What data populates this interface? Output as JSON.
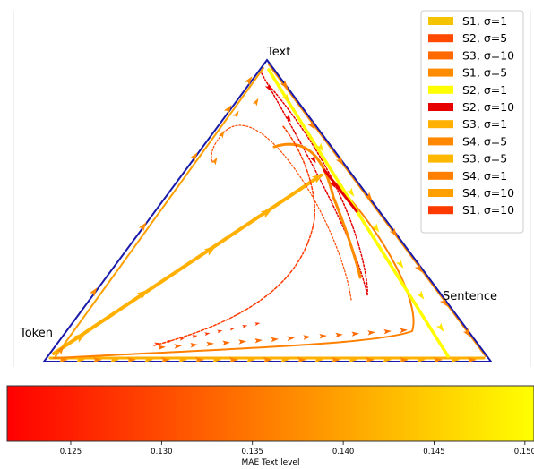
{
  "chart_data": {
    "type": "line",
    "corners": {
      "top": "Text",
      "right": "Sentence",
      "left": "Token"
    },
    "legend": {
      "position": "top-right",
      "entries": [
        {
          "label": "S1, σ=1",
          "color": "#f5c400"
        },
        {
          "label": "S2, σ=5",
          "color": "#ff4a00"
        },
        {
          "label": "S3, σ=10",
          "color": "#ff6a00"
        },
        {
          "label": "S1, σ=5",
          "color": "#ff8c00"
        },
        {
          "label": "S2, σ=1",
          "color": "#ffff00"
        },
        {
          "label": "S2, σ=10",
          "color": "#e60000"
        },
        {
          "label": "S3, σ=1",
          "color": "#ffb000"
        },
        {
          "label": "S4, σ=5",
          "color": "#ff8800"
        },
        {
          "label": "S3, σ=5",
          "color": "#ffb800"
        },
        {
          "label": "S4, σ=1",
          "color": "#ff8000"
        },
        {
          "label": "S4, σ=10",
          "color": "#ffa000"
        },
        {
          "label": "S1, σ=10",
          "color": "#ff3a00"
        }
      ]
    },
    "colorbar": {
      "label": "MAE Text level",
      "range": [
        0.1215,
        0.1505
      ],
      "ticks": [
        "0.125",
        "0.130",
        "0.135",
        "0.140",
        "0.145",
        "0.150"
      ],
      "tick_values": [
        0.125,
        0.13,
        0.135,
        0.14,
        0.145,
        0.15
      ],
      "colors": [
        "#ff0000",
        "#ffff00"
      ]
    },
    "triangle_edge_color": "#1a1aaa"
  }
}
